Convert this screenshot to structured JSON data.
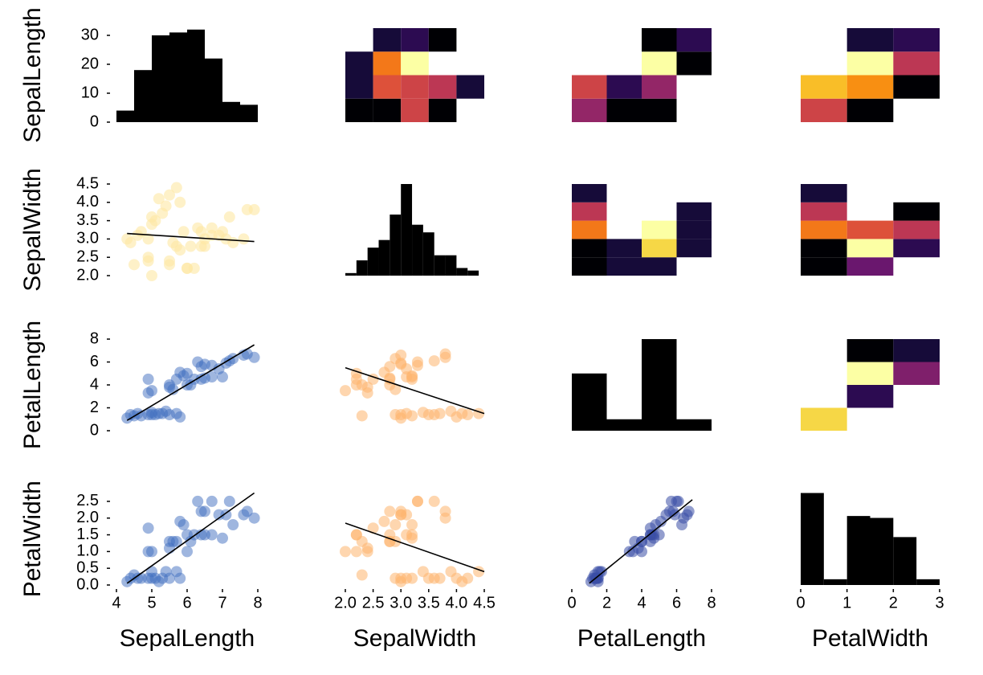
{
  "colorscale": [
    "#000004",
    "#160b39",
    "#420a68",
    "#6a176e",
    "#932667",
    "#bc3754",
    "#dd513a",
    "#f37819",
    "#fca50a",
    "#f6d746",
    "#fcffa4"
  ],
  "clim": [
    0,
    20
  ],
  "chart_data": [
    {
      "type": "histogram",
      "bins": [
        4,
        4.5,
        5,
        5.5,
        6,
        6.5,
        7,
        7.5,
        8
      ],
      "counts": [
        4,
        18,
        30,
        31,
        32,
        22,
        7,
        6
      ],
      "color": "#000000",
      "xlim": [
        4,
        8
      ],
      "ylim": [
        0,
        32.5
      ],
      "yticks": [
        0,
        10,
        20,
        30
      ],
      "ylabel": "SepalLength"
    },
    {
      "type": "heatmap",
      "x_bins": [
        2.0,
        2.5,
        3.0,
        3.5,
        4.0,
        4.5
      ],
      "y_bins": [
        4,
        5,
        6,
        7,
        8
      ],
      "values": [
        [
          0,
          0,
          11,
          0,
          null
        ],
        [
          2,
          12,
          11,
          10,
          2
        ],
        [
          2,
          14,
          20,
          null,
          null
        ],
        [
          null,
          2,
          3,
          0,
          null
        ]
      ],
      "xlim": [
        2,
        4.5
      ],
      "ylim": [
        4,
        8
      ]
    },
    {
      "type": "heatmap",
      "x_bins": [
        0,
        2,
        4,
        6,
        8
      ],
      "y_bins": [
        4,
        5,
        6,
        7,
        8
      ],
      "values": [
        [
          8,
          0,
          0,
          null
        ],
        [
          11,
          3,
          8,
          null
        ],
        [
          null,
          null,
          20,
          0
        ],
        [
          null,
          null,
          0,
          3
        ]
      ],
      "xlim": [
        0,
        8
      ],
      "ylim": [
        4,
        8
      ]
    },
    {
      "type": "heatmap",
      "x_bins": [
        0,
        1,
        2,
        3
      ],
      "y_bins": [
        4,
        5,
        6,
        7,
        8
      ],
      "values": [
        [
          11,
          0,
          null
        ],
        [
          17,
          15,
          0
        ],
        [
          null,
          20,
          10
        ],
        [
          null,
          2,
          3
        ]
      ],
      "xlim": [
        0,
        3
      ],
      "ylim": [
        4,
        8
      ]
    },
    {
      "type": "scatter",
      "x": [
        5.1,
        4.9,
        4.7,
        4.6,
        5.0,
        5.4,
        4.4,
        5.8,
        5.7,
        5.2,
        5.5,
        4.3,
        5.0,
        4.5,
        5.3,
        7.0,
        6.4,
        5.5,
        6.5,
        5.7,
        4.9,
        5.0,
        6.0,
        5.6,
        6.2,
        5.9,
        6.1,
        5.5,
        6.7,
        6.3,
        5.8,
        7.1,
        6.5,
        7.6,
        4.9,
        7.3,
        7.2,
        7.7,
        7.9,
        6.4,
        6.9,
        6.7,
        6.0
      ],
      "y": [
        3.5,
        3.0,
        3.2,
        3.1,
        3.6,
        3.9,
        2.9,
        4.0,
        4.4,
        4.1,
        4.2,
        3.0,
        3.4,
        2.3,
        3.7,
        3.2,
        3.2,
        2.3,
        2.8,
        2.8,
        2.4,
        2.0,
        2.2,
        2.9,
        2.2,
        3.2,
        2.8,
        2.4,
        3.1,
        3.3,
        2.7,
        3.0,
        3.0,
        3.0,
        2.5,
        2.9,
        3.6,
        3.8,
        3.8,
        2.8,
        3.1,
        3.3,
        2.2
      ],
      "color": "#fde7a4",
      "opacity": 0.6,
      "trendline": {
        "x": [
          4.3,
          7.9
        ],
        "y": [
          3.15,
          2.93
        ]
      },
      "trendline_color": "#000000",
      "xlim": [
        4,
        8
      ],
      "ylim": [
        2,
        4.5
      ],
      "yticks": [
        {
          "value": 2.0,
          "label": "2.0"
        },
        {
          "value": 2.5,
          "label": "2.5"
        },
        {
          "value": 3.0,
          "label": "3.0"
        },
        {
          "value": 3.5,
          "label": "3.5"
        },
        {
          "value": 4.0,
          "label": "4.0"
        },
        {
          "value": 4.5,
          "label": "4.5"
        }
      ],
      "ylabel": "SepalWidth"
    },
    {
      "type": "histogram",
      "bins": [
        2.0,
        2.2,
        2.4,
        2.6,
        2.8,
        3.0,
        3.2,
        3.4,
        3.6,
        3.8,
        4.0,
        4.2,
        4.4
      ],
      "counts": [
        1,
        6,
        11,
        14,
        24,
        36,
        20,
        17,
        8,
        8,
        3,
        2
      ],
      "color": "#000000",
      "xlim": [
        2,
        4.5
      ],
      "ylim": [
        0,
        36
      ]
    },
    {
      "type": "heatmap",
      "x_bins": [
        0,
        2,
        4,
        6,
        8
      ],
      "y_bins": [
        2.0,
        2.5,
        3.0,
        3.5,
        4.0,
        4.5
      ],
      "values": [
        [
          0,
          2,
          2,
          null
        ],
        [
          0,
          2,
          18,
          2
        ],
        [
          14,
          null,
          20,
          2
        ],
        [
          10,
          null,
          null,
          2
        ],
        [
          2,
          null,
          null,
          null
        ]
      ],
      "xlim": [
        0,
        8
      ],
      "ylim": [
        2,
        4.5
      ]
    },
    {
      "type": "heatmap",
      "x_bins": [
        0,
        1,
        2,
        3
      ],
      "y_bins": [
        2.0,
        2.5,
        3.0,
        3.5,
        4.0,
        4.5
      ],
      "values": [
        [
          0,
          6,
          null
        ],
        [
          0,
          20,
          3
        ],
        [
          14,
          12,
          10
        ],
        [
          10,
          null,
          0
        ],
        [
          2,
          null,
          null
        ]
      ],
      "xlim": [
        0,
        3
      ],
      "ylim": [
        2,
        4.5
      ]
    },
    {
      "type": "scatter",
      "x": [
        5.1,
        4.9,
        4.7,
        4.6,
        5.0,
        5.4,
        4.4,
        5.8,
        5.7,
        5.2,
        5.5,
        4.3,
        5.0,
        4.5,
        5.3,
        7.0,
        6.4,
        5.5,
        6.5,
        5.7,
        4.9,
        5.0,
        6.0,
        5.6,
        6.2,
        5.9,
        6.1,
        5.5,
        6.7,
        6.3,
        5.8,
        7.1,
        6.5,
        7.6,
        4.9,
        7.3,
        7.2,
        7.7,
        7.9,
        6.4,
        6.9,
        6.7,
        6.0
      ],
      "y": [
        1.4,
        1.4,
        1.3,
        1.5,
        1.4,
        1.7,
        1.4,
        1.2,
        1.5,
        1.5,
        1.4,
        1.1,
        1.6,
        1.3,
        1.5,
        4.7,
        4.5,
        4.0,
        4.6,
        4.5,
        3.3,
        3.5,
        4.0,
        3.6,
        4.5,
        4.8,
        4.0,
        3.8,
        4.7,
        6.0,
        5.1,
        5.9,
        5.8,
        6.6,
        4.5,
        6.3,
        6.1,
        6.7,
        6.4,
        5.6,
        5.4,
        5.7,
        5.0
      ],
      "color": "#3f6ec0",
      "opacity": 0.5,
      "trendline": {
        "x": [
          4.3,
          7.9
        ],
        "y": [
          0.9,
          7.5
        ]
      },
      "trendline_color": "#000000",
      "xlim": [
        4,
        8
      ],
      "ylim": [
        0,
        8
      ],
      "yticks": [
        0,
        2,
        4,
        6,
        8
      ],
      "ylabel": "PetalLength"
    },
    {
      "type": "scatter",
      "x": [
        3.5,
        3.0,
        3.2,
        3.1,
        3.6,
        3.9,
        2.9,
        4.0,
        4.4,
        4.1,
        4.2,
        3.0,
        3.4,
        2.3,
        3.7,
        3.2,
        3.2,
        2.3,
        2.8,
        2.8,
        2.4,
        2.0,
        2.2,
        2.9,
        2.2,
        3.2,
        2.8,
        2.4,
        3.1,
        3.3,
        2.7,
        3.0,
        3.0,
        3.0,
        2.5,
        2.9,
        3.6,
        3.8,
        3.8,
        2.8,
        3.1,
        3.3,
        2.2
      ],
      "y": [
        1.4,
        1.4,
        1.3,
        1.5,
        1.4,
        1.7,
        1.4,
        1.2,
        1.5,
        1.5,
        1.4,
        1.1,
        1.6,
        1.3,
        1.5,
        4.7,
        4.5,
        4.0,
        4.6,
        4.5,
        3.3,
        3.5,
        4.0,
        3.6,
        4.5,
        4.8,
        4.0,
        3.8,
        4.7,
        6.0,
        5.1,
        5.9,
        5.8,
        6.6,
        4.5,
        6.3,
        6.1,
        6.7,
        6.4,
        5.6,
        5.4,
        5.7,
        5.0
      ],
      "color": "#fdb46e",
      "opacity": 0.55,
      "trendline": {
        "x": [
          2.0,
          4.5
        ],
        "y": [
          5.5,
          1.5
        ]
      },
      "trendline_color": "#000000",
      "xlim": [
        2,
        4.5
      ],
      "ylim": [
        0,
        8
      ]
    },
    {
      "type": "histogram",
      "bins": [
        0,
        2,
        4,
        6,
        8
      ],
      "counts": [
        50,
        10,
        80,
        10
      ],
      "color": "#000000",
      "xlim": [
        0,
        8
      ],
      "ylim": [
        0,
        80
      ]
    },
    {
      "type": "heatmap",
      "x_bins": [
        0,
        1,
        2,
        3
      ],
      "y_bins": [
        0,
        2,
        4,
        6,
        8
      ],
      "values": [
        [
          18,
          null,
          null
        ],
        [
          null,
          3,
          null
        ],
        [
          null,
          20,
          7
        ],
        [
          null,
          0,
          2
        ]
      ],
      "xlim": [
        0,
        3
      ],
      "ylim": [
        0,
        8
      ]
    },
    {
      "type": "scatter",
      "x": [
        5.1,
        4.9,
        4.7,
        4.6,
        5.0,
        5.4,
        4.4,
        5.8,
        5.7,
        5.2,
        5.5,
        4.3,
        5.0,
        4.5,
        5.3,
        7.0,
        6.4,
        5.5,
        6.5,
        5.7,
        4.9,
        5.0,
        6.0,
        5.6,
        6.2,
        5.9,
        6.1,
        5.5,
        6.7,
        6.3,
        5.8,
        7.1,
        6.5,
        7.6,
        4.9,
        7.3,
        7.2,
        7.7,
        7.9,
        6.4,
        6.9,
        6.7,
        6.0
      ],
      "y": [
        0.2,
        0.2,
        0.2,
        0.2,
        0.2,
        0.4,
        0.2,
        0.2,
        0.4,
        0.1,
        0.2,
        0.1,
        0.4,
        0.3,
        0.2,
        1.4,
        1.5,
        1.3,
        1.5,
        1.3,
        1.0,
        1.0,
        1.0,
        1.3,
        1.5,
        1.8,
        1.3,
        1.1,
        1.5,
        2.5,
        1.9,
        2.1,
        2.2,
        2.1,
        1.7,
        1.8,
        2.5,
        2.2,
        2.0,
        2.2,
        2.1,
        2.5,
        1.5
      ],
      "color": "#3f6ec0",
      "opacity": 0.5,
      "trendline": {
        "x": [
          4.3,
          7.9
        ],
        "y": [
          0.05,
          2.75
        ]
      },
      "trendline_color": "#000000",
      "xlim": [
        4,
        8
      ],
      "ylim": [
        0,
        2.75
      ],
      "xticks": [
        4,
        5,
        6,
        7,
        8
      ],
      "yticks": [
        {
          "value": 0.0,
          "label": "0.0"
        },
        {
          "value": 0.5,
          "label": "0.5"
        },
        {
          "value": 1.0,
          "label": "1.0"
        },
        {
          "value": 1.5,
          "label": "1.5"
        },
        {
          "value": 2.0,
          "label": "2.0"
        },
        {
          "value": 2.5,
          "label": "2.5"
        }
      ],
      "xlabel": "SepalLength",
      "ylabel": "PetalWidth"
    },
    {
      "type": "scatter",
      "x": [
        3.5,
        3.0,
        3.2,
        3.1,
        3.6,
        3.9,
        2.9,
        4.0,
        4.4,
        4.1,
        4.2,
        3.0,
        3.4,
        2.3,
        3.7,
        3.2,
        3.2,
        2.3,
        2.8,
        2.8,
        2.4,
        2.0,
        2.2,
        2.9,
        2.2,
        3.2,
        2.8,
        2.4,
        3.1,
        3.3,
        2.7,
        3.0,
        3.0,
        3.0,
        2.5,
        2.9,
        3.6,
        3.8,
        3.8,
        2.8,
        3.1,
        3.3,
        2.2
      ],
      "y": [
        0.2,
        0.2,
        0.2,
        0.2,
        0.2,
        0.4,
        0.2,
        0.2,
        0.4,
        0.1,
        0.2,
        0.1,
        0.4,
        0.3,
        0.2,
        1.4,
        1.5,
        1.3,
        1.5,
        1.3,
        1.0,
        1.0,
        1.0,
        1.3,
        1.5,
        1.8,
        1.3,
        1.1,
        1.5,
        2.5,
        1.9,
        2.1,
        2.2,
        2.1,
        1.7,
        1.8,
        2.5,
        2.2,
        2.0,
        2.2,
        2.1,
        2.5,
        1.5
      ],
      "color": "#fdb46e",
      "opacity": 0.55,
      "trendline": {
        "x": [
          2.0,
          4.5
        ],
        "y": [
          1.85,
          0.4
        ]
      },
      "trendline_color": "#000000",
      "xlim": [
        2,
        4.5
      ],
      "ylim": [
        0,
        2.75
      ],
      "xticks": [
        {
          "value": 2.0,
          "label": "2.0"
        },
        {
          "value": 2.5,
          "label": "2.5"
        },
        {
          "value": 3.0,
          "label": "3.0"
        },
        {
          "value": 3.5,
          "label": "3.5"
        },
        {
          "value": 4.0,
          "label": "4.0"
        },
        {
          "value": 4.5,
          "label": "4.5"
        }
      ],
      "xlabel": "SepalWidth"
    },
    {
      "type": "scatter",
      "x": [
        1.4,
        1.4,
        1.3,
        1.5,
        1.4,
        1.7,
        1.4,
        1.2,
        1.5,
        1.5,
        1.4,
        1.1,
        1.6,
        1.3,
        1.5,
        4.7,
        4.5,
        4.0,
        4.6,
        4.5,
        3.3,
        3.5,
        4.0,
        3.6,
        4.5,
        4.8,
        4.0,
        3.8,
        4.7,
        6.0,
        5.1,
        5.9,
        5.8,
        6.6,
        4.5,
        6.3,
        6.1,
        6.7,
        6.4,
        5.6,
        5.4,
        5.7,
        5.0
      ],
      "y": [
        0.2,
        0.2,
        0.2,
        0.2,
        0.2,
        0.4,
        0.2,
        0.2,
        0.4,
        0.1,
        0.2,
        0.1,
        0.4,
        0.3,
        0.2,
        1.4,
        1.5,
        1.3,
        1.5,
        1.3,
        1.0,
        1.0,
        1.0,
        1.3,
        1.5,
        1.8,
        1.3,
        1.1,
        1.5,
        2.5,
        1.9,
        2.1,
        2.2,
        2.1,
        1.7,
        1.8,
        2.5,
        2.2,
        2.0,
        2.2,
        2.1,
        2.5,
        1.5
      ],
      "color": "#3b4fa6",
      "opacity": 0.55,
      "trendline": {
        "x": [
          1.0,
          6.9
        ],
        "y": [
          0.05,
          2.55
        ]
      },
      "trendline_color": "#000000",
      "xlim": [
        0,
        8
      ],
      "ylim": [
        0,
        2.75
      ],
      "xticks": [
        0,
        2,
        4,
        6,
        8
      ],
      "xlabel": "PetalLength"
    },
    {
      "type": "histogram",
      "bins": [
        0,
        0.5,
        1,
        1.5,
        2,
        2.5,
        3
      ],
      "counts": [
        48,
        3,
        36,
        35,
        25,
        3
      ],
      "color": "#000000",
      "xlim": [
        0,
        3
      ],
      "ylim": [
        0,
        48
      ],
      "xticks": [
        0,
        1,
        2,
        3
      ],
      "xlabel": "PetalWidth"
    }
  ]
}
